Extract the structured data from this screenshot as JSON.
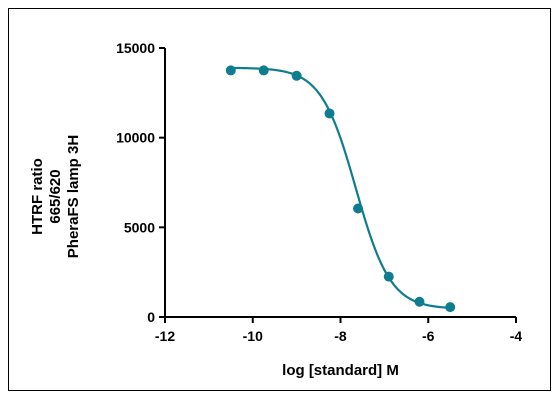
{
  "chart_data": {
    "type": "scatter",
    "title": "",
    "xlabel": "log [standard] M",
    "ylabel_lines": [
      "HTRF ratio",
      "665/620",
      "PheraFS lamp 3H"
    ],
    "xlim": [
      -12,
      -4
    ],
    "ylim": [
      0,
      15000
    ],
    "x_ticks": [
      -12,
      -10,
      -8,
      -6,
      -4
    ],
    "y_ticks": [
      0,
      5000,
      10000,
      15000
    ],
    "x_tick_labels": [
      "-12",
      "-10",
      "-8",
      "-6",
      "-4"
    ],
    "y_tick_labels": [
      "0",
      "5000",
      "10000",
      "15000"
    ],
    "grid": false,
    "legend": false,
    "series": [
      {
        "points": [
          {
            "x": -10.5,
            "y": 13750
          },
          {
            "x": -9.75,
            "y": 13750
          },
          {
            "x": -9.0,
            "y": 13450
          },
          {
            "x": -8.25,
            "y": 11350
          },
          {
            "x": -7.6,
            "y": 6050
          },
          {
            "x": -6.9,
            "y": 2250
          },
          {
            "x": -6.2,
            "y": 850
          },
          {
            "x": -5.5,
            "y": 550
          }
        ],
        "fit": {
          "model": "four-parameter logistic",
          "top": 13900,
          "bottom": 450,
          "log_ic50": -7.65,
          "hill_slope": -1.1,
          "x_range": [
            -10.5,
            -5.5
          ]
        },
        "color": "#0e7d8f"
      }
    ]
  }
}
